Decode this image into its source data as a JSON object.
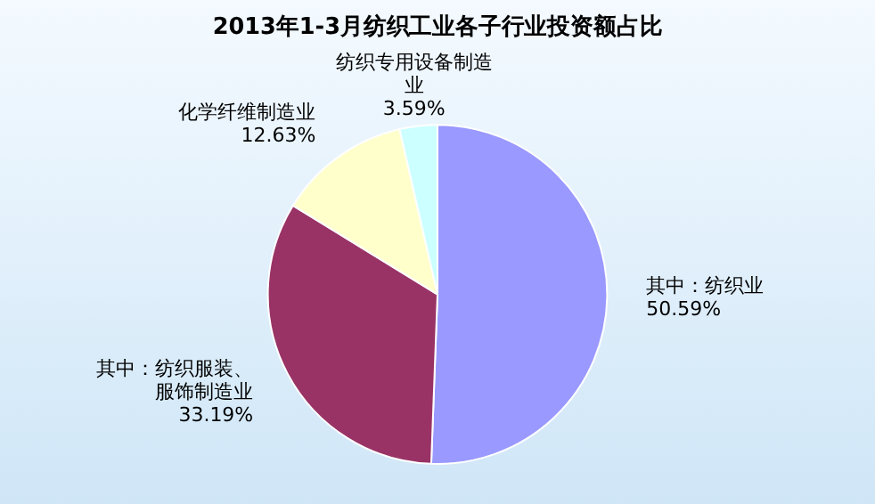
{
  "chart_data": {
    "type": "pie",
    "title": "2013年1-3月纺织工业各子行业投资额占比",
    "categories": [
      "其中：纺织业",
      "其中：纺织服装、服饰制造业",
      "化学纤维制造业",
      "纺织专用设备制造业"
    ],
    "values": [
      50.59,
      33.19,
      12.63,
      3.59
    ],
    "value_labels": [
      "50.59%",
      "33.19%",
      "12.63%",
      "3.59%"
    ],
    "colors": [
      "#9999ff",
      "#993366",
      "#ffffcc",
      "#ccffff"
    ],
    "legend": false
  }
}
